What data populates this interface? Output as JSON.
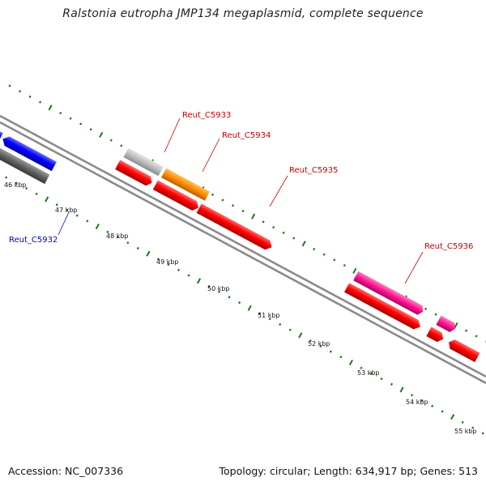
{
  "title": "Ralstonia eutropha JMP134 megaplasmid, complete sequence",
  "footer": {
    "accession": "Accession: NC_007336",
    "summary": "Topology: circular; Length: 634,917 bp; Genes: 513"
  },
  "ruler": {
    "unit": "kbp",
    "labels": [
      "46 kbp",
      "47 kbp",
      "48 kbp",
      "49 kbp",
      "50 kbp",
      "51 kbp",
      "52 kbp",
      "53 kbp",
      "54 kbp",
      "55 kbp"
    ]
  },
  "gene_labels": [
    {
      "name": "Reut_C5933",
      "color": "#cc0000"
    },
    {
      "name": "Reut_C5934",
      "color": "#cc0000"
    },
    {
      "name": "Reut_C5935",
      "color": "#cc0000"
    },
    {
      "name": "Reut_C5936",
      "color": "#cc0000"
    },
    {
      "name": "Reut_C5932",
      "color": "#0000cc"
    }
  ],
  "colors": {
    "tick": "#1a7a1a",
    "backbone": "#8a8a8a",
    "red": "#ff0000",
    "blue": "#0000ff",
    "gray": "#bbbbbb",
    "darkgray": "#606060",
    "pink": "#f08080",
    "orange": "#ff8c00",
    "magenta": "#ff1493"
  }
}
